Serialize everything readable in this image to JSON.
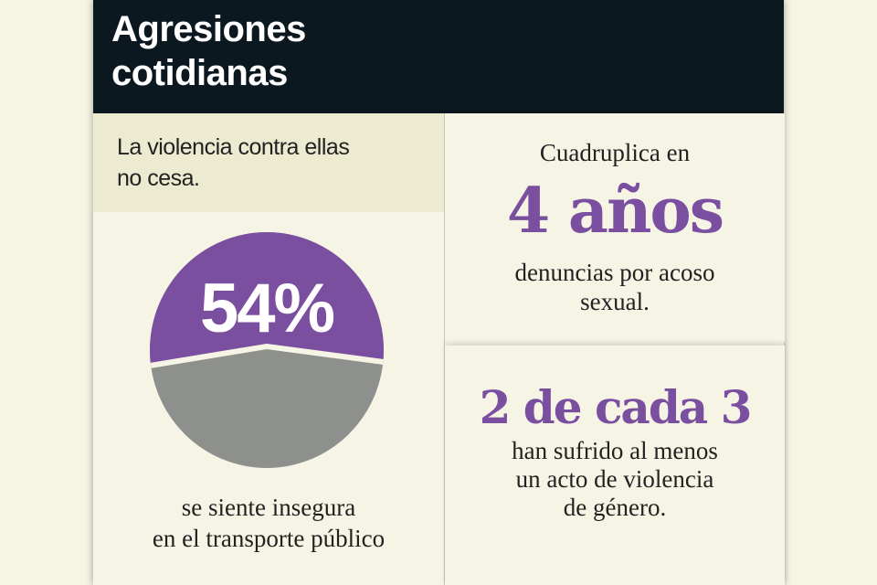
{
  "header": {
    "title_line1": "Agresiones",
    "title_line2": "cotidianas"
  },
  "intro": {
    "line1": "La violencia contra ellas",
    "line2": "no cesa."
  },
  "pie_stat": {
    "value_label": "54%",
    "caption_line1": "se siente insegura",
    "caption_line2": "en el transporte público"
  },
  "stat_harassment": {
    "lead": "Cuadruplica en",
    "highlight": "4 años",
    "caption_line1": "denuncias por acoso",
    "caption_line2": "sexual."
  },
  "stat_violence": {
    "highlight": "2 de cada 3",
    "caption_line1": "han sufrido al menos",
    "caption_line2": "un acto de violencia",
    "caption_line3": "de género."
  },
  "colors": {
    "accent": "#7a4fa0",
    "neutral": "#8e908e",
    "header_bg": "#0b1820",
    "intro_bg": "#ecead0",
    "page_bg": "#f6f4e4"
  }
}
